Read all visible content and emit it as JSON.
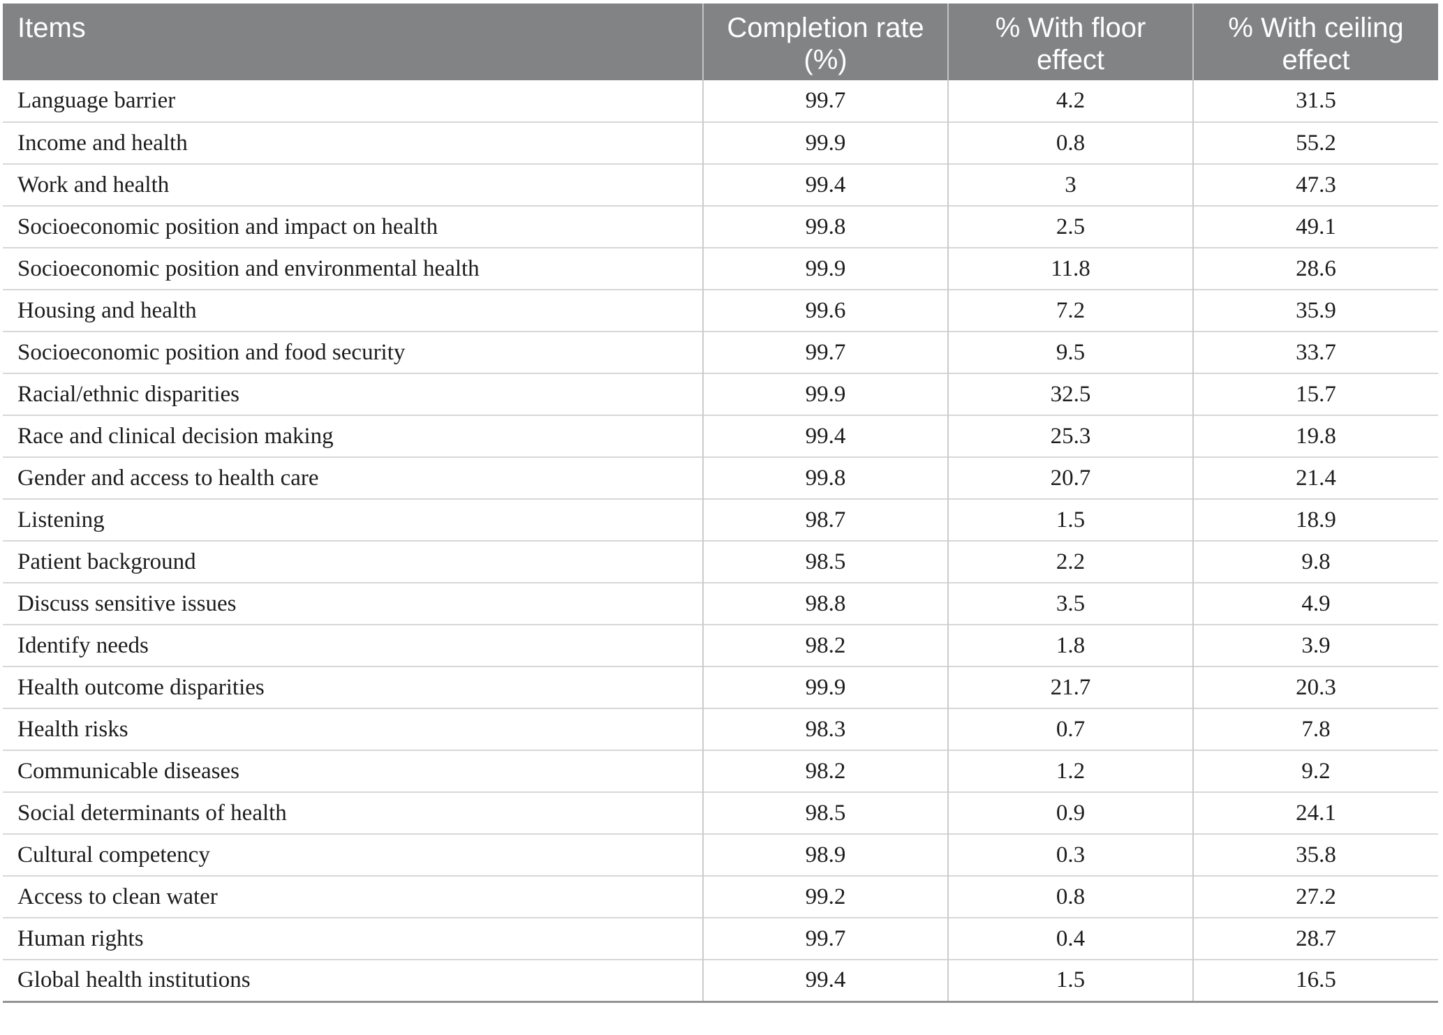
{
  "table": {
    "columns": [
      {
        "id": "item",
        "label": "Items"
      },
      {
        "id": "completion_rate",
        "label": "Completion rate (%)"
      },
      {
        "id": "floor_effect",
        "label": "% With floor effect"
      },
      {
        "id": "ceiling_effect",
        "label": "% With ceiling effect"
      }
    ],
    "rows": [
      {
        "item": "Language barrier",
        "completion_rate": "99.7",
        "floor_effect": "4.2",
        "ceiling_effect": "31.5"
      },
      {
        "item": "Income and health",
        "completion_rate": "99.9",
        "floor_effect": "0.8",
        "ceiling_effect": "55.2"
      },
      {
        "item": "Work and health",
        "completion_rate": "99.4",
        "floor_effect": "3",
        "ceiling_effect": "47.3"
      },
      {
        "item": "Socioeconomic position and impact on health",
        "completion_rate": "99.8",
        "floor_effect": "2.5",
        "ceiling_effect": "49.1"
      },
      {
        "item": "Socioeconomic position and environmental health",
        "completion_rate": "99.9",
        "floor_effect": "11.8",
        "ceiling_effect": "28.6"
      },
      {
        "item": "Housing and health",
        "completion_rate": "99.6",
        "floor_effect": "7.2",
        "ceiling_effect": "35.9"
      },
      {
        "item": "Socioeconomic position and food security",
        "completion_rate": "99.7",
        "floor_effect": "9.5",
        "ceiling_effect": "33.7"
      },
      {
        "item": "Racial/ethnic disparities",
        "completion_rate": "99.9",
        "floor_effect": "32.5",
        "ceiling_effect": "15.7"
      },
      {
        "item": "Race and clinical decision making",
        "completion_rate": "99.4",
        "floor_effect": "25.3",
        "ceiling_effect": "19.8"
      },
      {
        "item": "Gender and access to health care",
        "completion_rate": "99.8",
        "floor_effect": "20.7",
        "ceiling_effect": "21.4"
      },
      {
        "item": "Listening",
        "completion_rate": "98.7",
        "floor_effect": "1.5",
        "ceiling_effect": "18.9"
      },
      {
        "item": "Patient background",
        "completion_rate": "98.5",
        "floor_effect": "2.2",
        "ceiling_effect": "9.8"
      },
      {
        "item": "Discuss sensitive issues",
        "completion_rate": "98.8",
        "floor_effect": "3.5",
        "ceiling_effect": "4.9"
      },
      {
        "item": "Identify needs",
        "completion_rate": "98.2",
        "floor_effect": "1.8",
        "ceiling_effect": "3.9"
      },
      {
        "item": "Health outcome disparities",
        "completion_rate": "99.9",
        "floor_effect": "21.7",
        "ceiling_effect": "20.3"
      },
      {
        "item": "Health risks",
        "completion_rate": "98.3",
        "floor_effect": "0.7",
        "ceiling_effect": "7.8"
      },
      {
        "item": "Communicable diseases",
        "completion_rate": "98.2",
        "floor_effect": "1.2",
        "ceiling_effect": "9.2"
      },
      {
        "item": "Social determinants of health",
        "completion_rate": "98.5",
        "floor_effect": "0.9",
        "ceiling_effect": "24.1"
      },
      {
        "item": "Cultural competency",
        "completion_rate": "98.9",
        "floor_effect": "0.3",
        "ceiling_effect": "35.8"
      },
      {
        "item": "Access to clean water",
        "completion_rate": "99.2",
        "floor_effect": "0.8",
        "ceiling_effect": "27.2"
      },
      {
        "item": "Human rights",
        "completion_rate": "99.7",
        "floor_effect": "0.4",
        "ceiling_effect": "28.7"
      },
      {
        "item": "Global health institutions",
        "completion_rate": "99.4",
        "floor_effect": "1.5",
        "ceiling_effect": "16.5"
      }
    ]
  },
  "colors": {
    "header_bg": "#818384",
    "header_text": "#ffffff",
    "row_divider": "#d6d7d8",
    "column_divider": "#c9cbcc",
    "bottom_border": "#919394",
    "body_text": "#1c1c1c"
  }
}
